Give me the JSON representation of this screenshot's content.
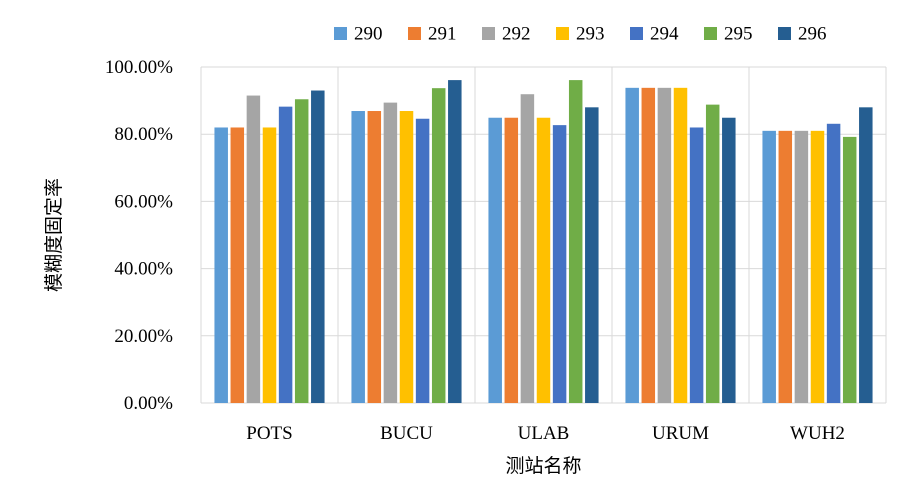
{
  "chart_data": {
    "type": "bar",
    "title": "",
    "xlabel": "测站名称",
    "ylabel": "模糊度固定率",
    "ylim": [
      0,
      100
    ],
    "y_ticks": [
      "0.00%",
      "20.00%",
      "40.00%",
      "60.00%",
      "80.00%",
      "100.00%"
    ],
    "y_tick_values": [
      0,
      20,
      40,
      60,
      80,
      100
    ],
    "grid": true,
    "legend_position": "top",
    "categories": [
      "POTS",
      "BUCU",
      "ULAB",
      "URUM",
      "WUH2"
    ],
    "series": [
      {
        "name": "290",
        "color": "#5b9bd5",
        "values": [
          82.0,
          86.9,
          84.9,
          93.8,
          81.0
        ]
      },
      {
        "name": "291",
        "color": "#ed7d31",
        "values": [
          82.0,
          86.9,
          84.9,
          93.8,
          81.0
        ]
      },
      {
        "name": "292",
        "color": "#a5a5a5",
        "values": [
          91.5,
          89.4,
          91.9,
          93.8,
          81.0
        ]
      },
      {
        "name": "293",
        "color": "#ffc000",
        "values": [
          82.0,
          86.9,
          84.9,
          93.8,
          81.0
        ]
      },
      {
        "name": "294",
        "color": "#4472c4",
        "values": [
          88.2,
          84.6,
          82.7,
          82.0,
          83.1
        ]
      },
      {
        "name": "295",
        "color": "#70ad47",
        "values": [
          90.4,
          93.7,
          96.1,
          88.8,
          79.2
        ]
      },
      {
        "name": "296",
        "color": "#255e91",
        "values": [
          93.0,
          96.1,
          88.0,
          84.9,
          88.0
        ]
      }
    ]
  }
}
